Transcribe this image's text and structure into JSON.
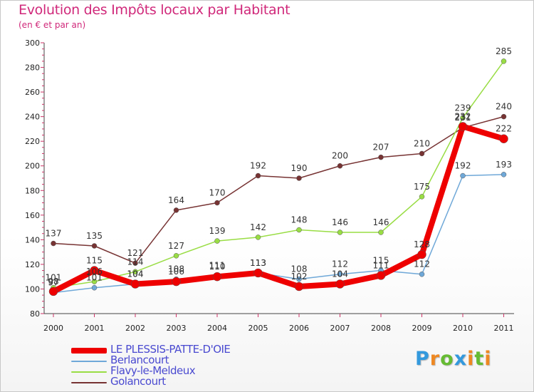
{
  "chart_data": {
    "type": "line",
    "title": "Evolution des Impôts locaux par Habitant",
    "subtitle": "(en € et par an)",
    "xlabel": "",
    "ylabel": "",
    "x": [
      "2000",
      "2001",
      "2002",
      "2003",
      "2004",
      "2005",
      "2006",
      "2007",
      "2008",
      "2009",
      "2010",
      "2011"
    ],
    "ylim": [
      80,
      300
    ],
    "yticks": [
      80,
      100,
      120,
      140,
      160,
      180,
      200,
      220,
      240,
      260,
      280,
      300
    ],
    "grid": false,
    "legend_position": "bottom-left",
    "series": [
      {
        "name": "LE PLESSIS-PATTE-D'OIE",
        "color": "#ee0000",
        "values": [
          98,
          115,
          104,
          106,
          110,
          113,
          102,
          104,
          111,
          128,
          232,
          222
        ],
        "labels": [
          "98",
          "115",
          "104",
          "106",
          "110",
          "113",
          "102",
          "104",
          "111",
          "128",
          "232",
          "222"
        ]
      },
      {
        "name": "Berlancourt",
        "color": "#6fa8d8",
        "values": [
          97,
          101,
          104,
          108,
          111,
          113,
          108,
          112,
          115,
          112,
          192,
          193
        ],
        "labels": [
          "97",
          "101",
          "104",
          "108",
          "111",
          "113",
          "108",
          "112",
          "115",
          "112",
          "192",
          "193"
        ]
      },
      {
        "name": "Flavy-le-Meldeux",
        "color": "#99dd44",
        "values": [
          101,
          106,
          114,
          127,
          139,
          142,
          148,
          146,
          146,
          175,
          239,
          285
        ],
        "labels": [
          "101",
          "106",
          "114",
          "127",
          "139",
          "142",
          "148",
          "146",
          "146",
          "175",
          "239",
          "285"
        ]
      },
      {
        "name": "Golancourt",
        "color": "#773333",
        "values": [
          137,
          135,
          121,
          164,
          170,
          192,
          190,
          200,
          207,
          210,
          231,
          240
        ],
        "labels": [
          "137",
          "135",
          "121",
          "164",
          "170",
          "192",
          "190",
          "200",
          "207",
          "210",
          "231",
          "240"
        ]
      }
    ]
  },
  "logo": {
    "letters": [
      "P",
      "r",
      "o",
      "x",
      "i",
      "t",
      "i"
    ],
    "colors": [
      "#3399dd",
      "#ee8822",
      "#66bb33",
      "#3399dd",
      "#ee8822",
      "#66bb33",
      "#ee8822"
    ]
  }
}
